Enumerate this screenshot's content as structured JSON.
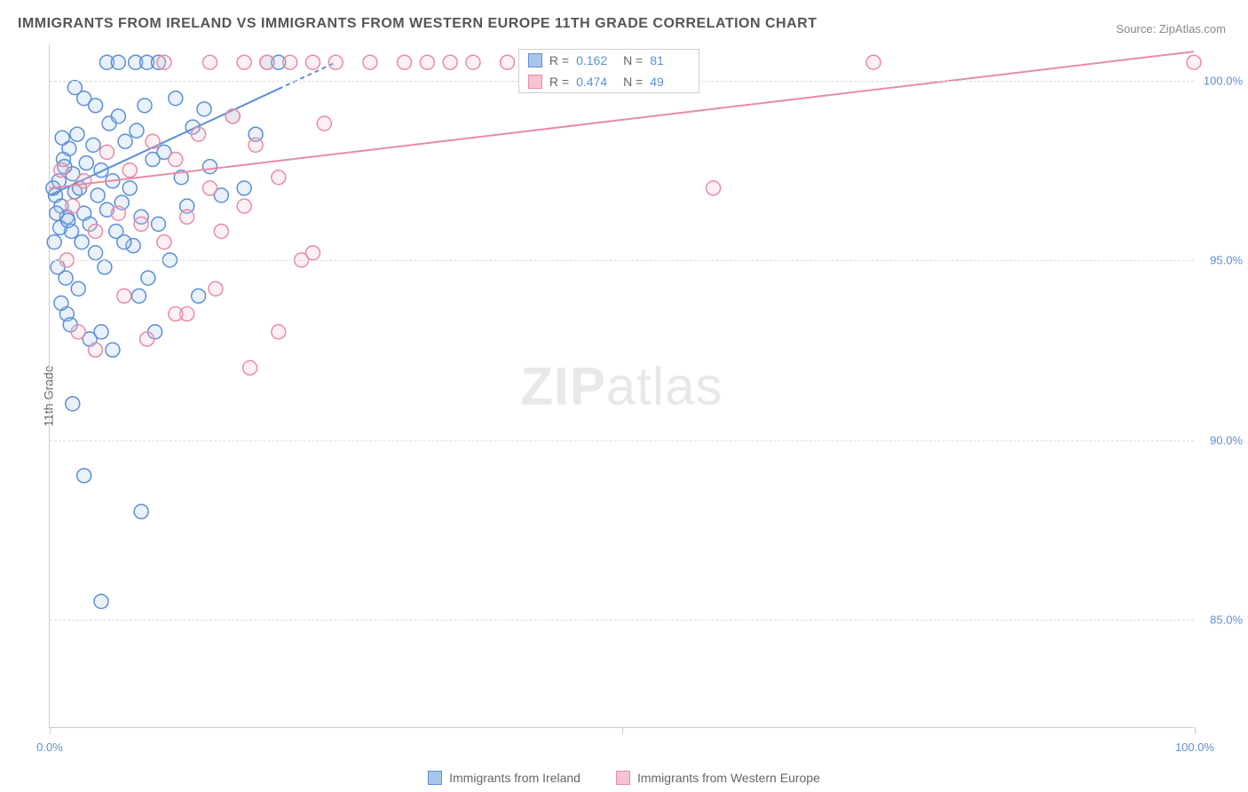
{
  "title": "IMMIGRANTS FROM IRELAND VS IMMIGRANTS FROM WESTERN EUROPE 11TH GRADE CORRELATION CHART",
  "source_label": "Source:",
  "source_value": "ZipAtlas.com",
  "y_axis_label": "11th Grade",
  "watermark_bold": "ZIP",
  "watermark_light": "atlas",
  "chart": {
    "type": "scatter",
    "background_color": "#ffffff",
    "grid_color": "#dddddd",
    "axis_color": "#cccccc",
    "tick_label_color": "#5b8fd6",
    "xlim": [
      0,
      100
    ],
    "ylim": [
      82,
      101
    ],
    "y_ticks": [
      85.0,
      90.0,
      95.0,
      100.0
    ],
    "y_tick_labels": [
      "85.0%",
      "90.0%",
      "95.0%",
      "100.0%"
    ],
    "x_ticks": [
      0,
      50,
      100
    ],
    "x_tick_major": [
      0,
      100
    ],
    "x_tick_labels": {
      "0": "0.0%",
      "100": "100.0%"
    },
    "marker_radius": 8,
    "marker_fill_opacity": 0.25,
    "marker_stroke_width": 1.5,
    "trend_line_width": 2
  },
  "series": [
    {
      "name": "Immigrants from Ireland",
      "color_stroke": "#5b8fd6",
      "color_fill": "#a8c6ec",
      "r_value": "0.162",
      "n_value": "81",
      "trend": {
        "x1": 0,
        "y1": 96.8,
        "x2": 25,
        "y2": 100.5
      },
      "trend_dash_after_x": 20,
      "points": [
        [
          0.5,
          96.8
        ],
        [
          0.8,
          97.2
        ],
        [
          1.0,
          96.5
        ],
        [
          1.2,
          97.8
        ],
        [
          1.5,
          96.2
        ],
        [
          1.7,
          98.1
        ],
        [
          1.9,
          95.8
        ],
        [
          2.0,
          97.4
        ],
        [
          2.2,
          96.9
        ],
        [
          2.4,
          98.5
        ],
        [
          2.6,
          97.0
        ],
        [
          2.8,
          95.5
        ],
        [
          3.0,
          96.3
        ],
        [
          3.2,
          97.7
        ],
        [
          3.5,
          96.0
        ],
        [
          3.8,
          98.2
        ],
        [
          4.0,
          95.2
        ],
        [
          4.2,
          96.8
        ],
        [
          4.5,
          97.5
        ],
        [
          4.8,
          94.8
        ],
        [
          5.0,
          96.4
        ],
        [
          5.2,
          98.8
        ],
        [
          5.5,
          97.2
        ],
        [
          5.8,
          95.8
        ],
        [
          6.0,
          99.0
        ],
        [
          6.3,
          96.6
        ],
        [
          6.6,
          98.3
        ],
        [
          7.0,
          97.0
        ],
        [
          7.3,
          95.4
        ],
        [
          7.6,
          98.6
        ],
        [
          8.0,
          96.2
        ],
        [
          8.3,
          99.3
        ],
        [
          8.6,
          94.5
        ],
        [
          9.0,
          97.8
        ],
        [
          9.5,
          96.0
        ],
        [
          10.0,
          98.0
        ],
        [
          10.5,
          95.0
        ],
        [
          11.0,
          99.5
        ],
        [
          11.5,
          97.3
        ],
        [
          12.0,
          96.5
        ],
        [
          12.5,
          98.7
        ],
        [
          13.0,
          94.0
        ],
        [
          13.5,
          99.2
        ],
        [
          14.0,
          97.6
        ],
        [
          15.0,
          96.8
        ],
        [
          16.0,
          99.0
        ],
        [
          17.0,
          97.0
        ],
        [
          18.0,
          98.5
        ],
        [
          19.0,
          100.5
        ],
        [
          20.0,
          100.5
        ],
        [
          1.5,
          93.5
        ],
        [
          2.5,
          94.2
        ],
        [
          3.5,
          92.8
        ],
        [
          4.5,
          93.0
        ],
        [
          5.5,
          92.5
        ],
        [
          2.0,
          91.0
        ],
        [
          3.0,
          89.0
        ],
        [
          8.0,
          88.0
        ],
        [
          4.5,
          85.5
        ],
        [
          5.0,
          100.5
        ],
        [
          6.0,
          100.5
        ],
        [
          7.5,
          100.5
        ],
        [
          8.5,
          100.5
        ],
        [
          9.5,
          100.5
        ],
        [
          0.3,
          97.0
        ],
        [
          0.6,
          96.3
        ],
        [
          0.9,
          95.9
        ],
        [
          1.1,
          98.4
        ],
        [
          1.3,
          97.6
        ],
        [
          1.6,
          96.1
        ],
        [
          0.4,
          95.5
        ],
        [
          0.7,
          94.8
        ],
        [
          1.0,
          93.8
        ],
        [
          1.4,
          94.5
        ],
        [
          1.8,
          93.2
        ],
        [
          2.2,
          99.8
        ],
        [
          3.0,
          99.5
        ],
        [
          4.0,
          99.3
        ],
        [
          6.5,
          95.5
        ],
        [
          7.8,
          94.0
        ],
        [
          9.2,
          93.0
        ]
      ]
    },
    {
      "name": "Immigrants from Western Europe",
      "color_stroke": "#e88ba6",
      "color_fill": "#f5c3d1",
      "r_value": "0.474",
      "n_value": "49",
      "trend": {
        "x1": 0,
        "y1": 97.0,
        "x2": 100,
        "y2": 100.8
      },
      "points": [
        [
          2.0,
          96.5
        ],
        [
          3.0,
          97.2
        ],
        [
          4.0,
          95.8
        ],
        [
          5.0,
          98.0
        ],
        [
          6.0,
          96.3
        ],
        [
          7.0,
          97.5
        ],
        [
          8.0,
          96.0
        ],
        [
          9.0,
          98.3
        ],
        [
          10.0,
          95.5
        ],
        [
          11.0,
          97.8
        ],
        [
          12.0,
          96.2
        ],
        [
          13.0,
          98.5
        ],
        [
          14.0,
          97.0
        ],
        [
          15.0,
          95.8
        ],
        [
          16.0,
          99.0
        ],
        [
          17.0,
          96.5
        ],
        [
          18.0,
          98.2
        ],
        [
          20.0,
          97.3
        ],
        [
          22.0,
          95.0
        ],
        [
          24.0,
          98.8
        ],
        [
          10.0,
          100.5
        ],
        [
          14.0,
          100.5
        ],
        [
          17.0,
          100.5
        ],
        [
          19.0,
          100.5
        ],
        [
          21.0,
          100.5
        ],
        [
          23.0,
          100.5
        ],
        [
          25.0,
          100.5
        ],
        [
          28.0,
          100.5
        ],
        [
          31.0,
          100.5
        ],
        [
          33.0,
          100.5
        ],
        [
          35.0,
          100.5
        ],
        [
          37.0,
          100.5
        ],
        [
          40.0,
          100.5
        ],
        [
          42.0,
          100.5
        ],
        [
          12.0,
          93.5
        ],
        [
          14.5,
          94.2
        ],
        [
          17.5,
          92.0
        ],
        [
          20.0,
          93.0
        ],
        [
          23.0,
          95.2
        ],
        [
          58.0,
          97.0
        ],
        [
          72.0,
          100.5
        ],
        [
          100.0,
          100.5
        ],
        [
          2.5,
          93.0
        ],
        [
          4.0,
          92.5
        ],
        [
          6.5,
          94.0
        ],
        [
          8.5,
          92.8
        ],
        [
          11.0,
          93.5
        ],
        [
          1.0,
          97.5
        ],
        [
          1.5,
          95.0
        ]
      ]
    }
  ],
  "legend_stats": {
    "r_label": "R =",
    "n_label": "N ="
  },
  "bottom_legend": [
    {
      "label": "Immigrants from Ireland",
      "swatch_fill": "#a8c6ec",
      "swatch_stroke": "#5b8fd6"
    },
    {
      "label": "Immigrants from Western Europe",
      "swatch_fill": "#f5c3d1",
      "swatch_stroke": "#e88ba6"
    }
  ]
}
